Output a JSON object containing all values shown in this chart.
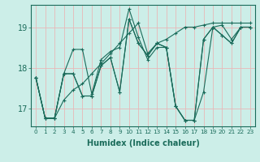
{
  "xlabel": "Humidex (Indice chaleur)",
  "bg_color": "#cceee8",
  "grid_color": "#e8b8b8",
  "line_color": "#1a6b5a",
  "xlim": [
    -0.5,
    23.5
  ],
  "ylim": [
    16.55,
    19.55
  ],
  "yticks": [
    17,
    18,
    19
  ],
  "xticks": [
    0,
    1,
    2,
    3,
    4,
    5,
    6,
    7,
    8,
    9,
    10,
    11,
    12,
    13,
    14,
    15,
    16,
    17,
    18,
    19,
    20,
    21,
    22,
    23
  ],
  "series": [
    [
      17.75,
      16.75,
      16.75,
      17.85,
      18.45,
      18.45,
      17.35,
      18.2,
      18.4,
      18.5,
      19.45,
      18.75,
      18.2,
      18.5,
      18.5,
      17.05,
      16.7,
      16.7,
      17.4,
      19.0,
      19.05,
      18.7,
      19.0,
      19.0
    ],
    [
      17.75,
      16.75,
      16.75,
      17.85,
      17.85,
      17.3,
      17.3,
      18.05,
      18.25,
      17.4,
      19.2,
      18.6,
      18.3,
      18.6,
      18.5,
      17.05,
      16.7,
      16.7,
      18.7,
      19.0,
      18.8,
      18.6,
      19.0,
      19.0
    ],
    [
      17.75,
      16.75,
      16.75,
      17.85,
      17.85,
      17.3,
      17.3,
      18.05,
      18.25,
      17.4,
      19.2,
      18.6,
      18.3,
      18.6,
      18.5,
      17.05,
      16.7,
      16.7,
      18.7,
      19.0,
      18.8,
      18.6,
      19.0,
      19.0
    ],
    [
      17.75,
      16.75,
      16.75,
      17.2,
      17.45,
      17.6,
      17.85,
      18.1,
      18.35,
      18.6,
      18.85,
      19.1,
      18.35,
      18.6,
      18.7,
      18.85,
      19.0,
      19.0,
      19.05,
      19.1,
      19.1,
      19.1,
      19.1,
      19.1
    ]
  ]
}
